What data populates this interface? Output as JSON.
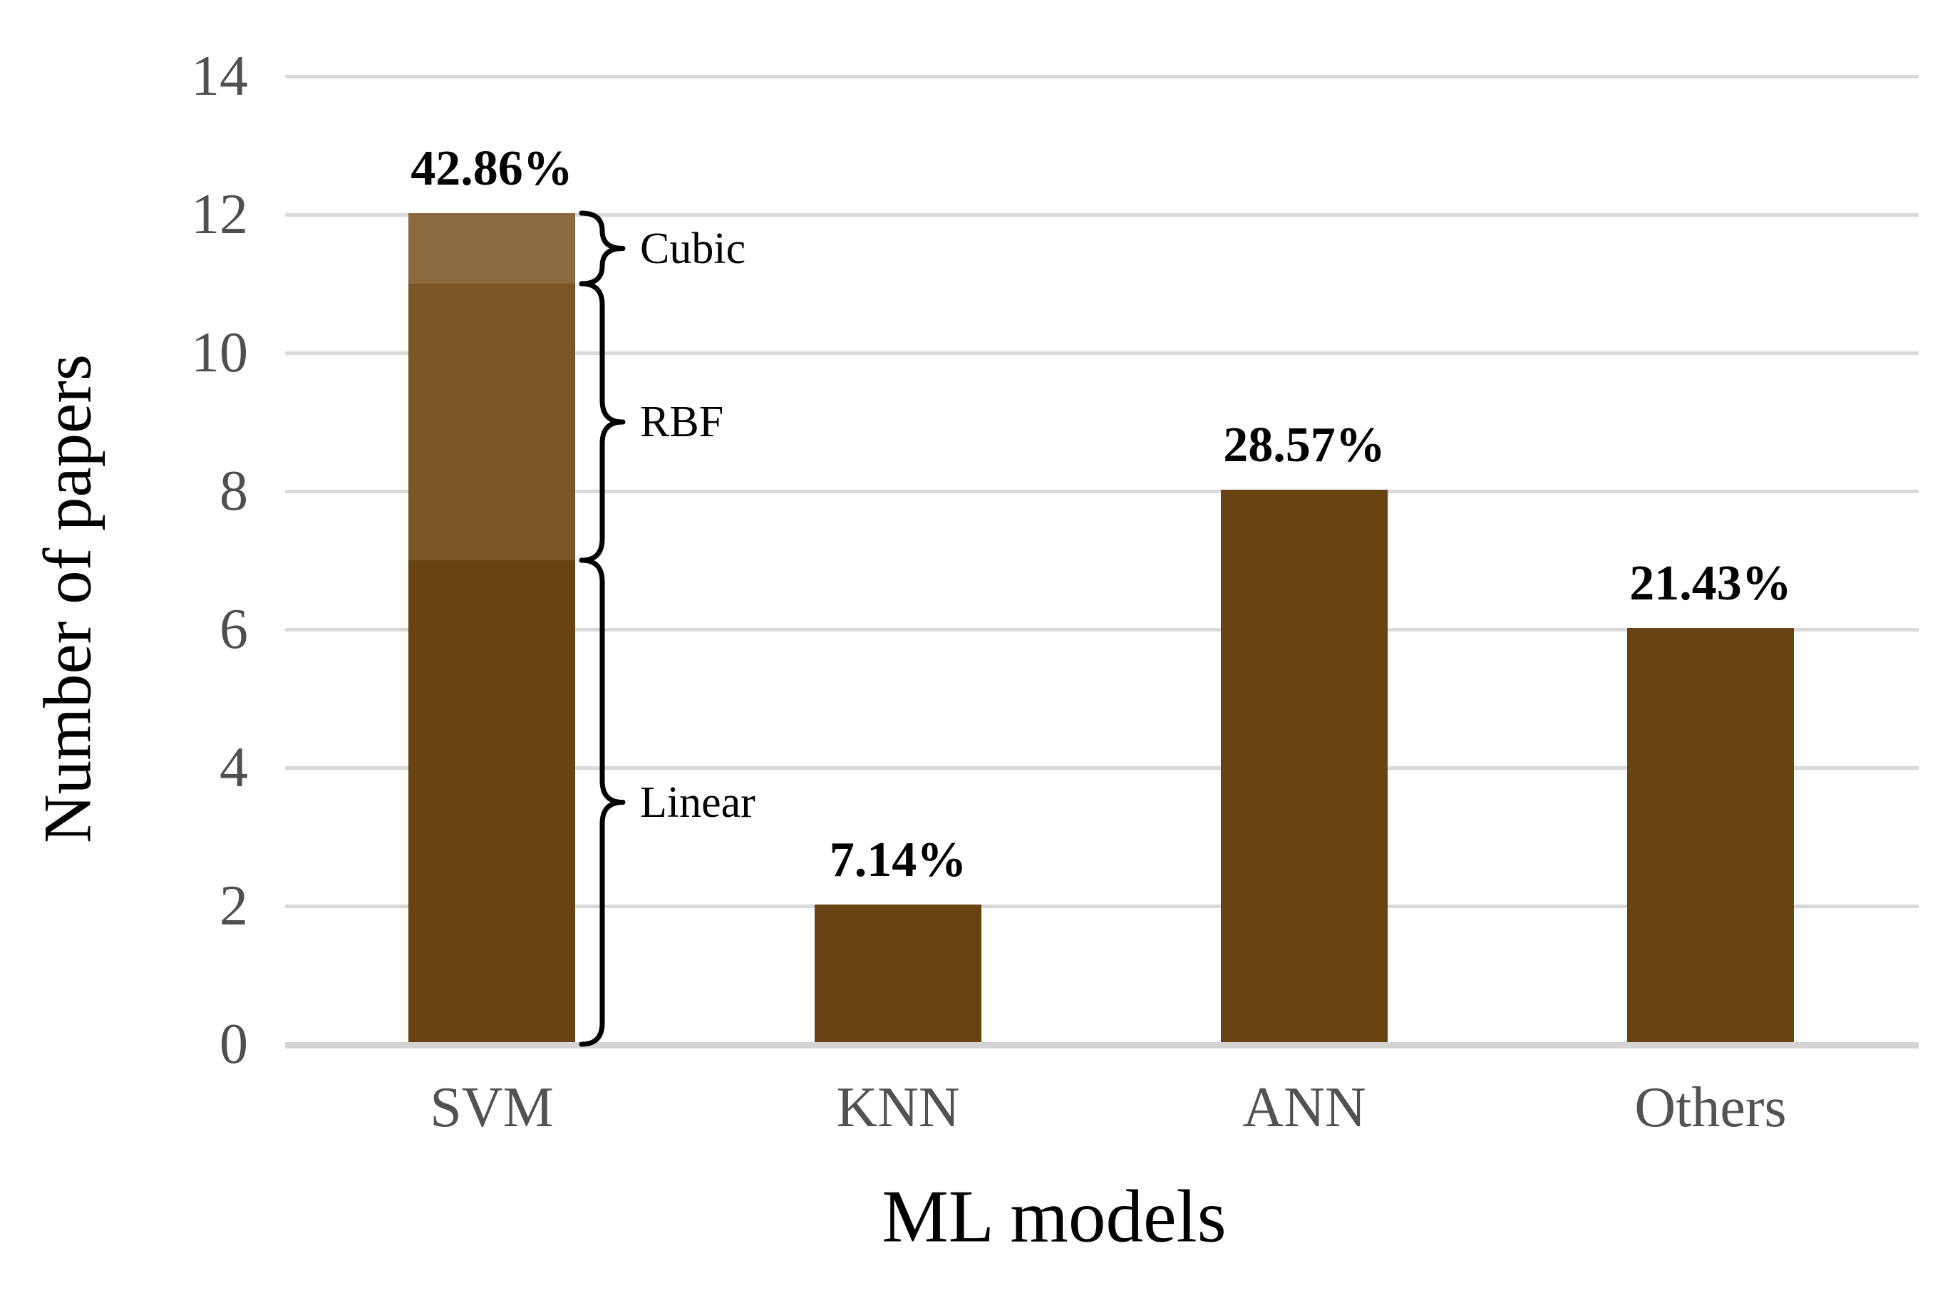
{
  "chart_data": {
    "type": "bar",
    "title": "",
    "xlabel": "ML models",
    "ylabel": "Number of papers",
    "ylim": [
      0,
      14
    ],
    "yticks": [
      0,
      2,
      4,
      6,
      8,
      10,
      12,
      14
    ],
    "grid": true,
    "legend_position": "none",
    "categories": [
      "SVM",
      "KNN",
      "ANN",
      "Others"
    ],
    "values": [
      12,
      2,
      8,
      6
    ],
    "percent_labels": [
      "42.86%",
      "7.14%",
      "28.57%",
      "21.43%"
    ],
    "stacked_bar": {
      "category": "SVM",
      "segments": [
        {
          "label": "Linear",
          "from": 0,
          "to": 7
        },
        {
          "label": "RBF",
          "from": 7,
          "to": 11
        },
        {
          "label": "Cubic",
          "from": 11,
          "to": 12
        }
      ]
    }
  },
  "colors": {
    "bar_main": "#6A4313",
    "segment_rbf": "#7A5526",
    "segment_cubic": "#8A6A3E",
    "segment_linear": "#6A4313",
    "gridline": "#D9D9D9",
    "axis_baseline": "#D4D4D4",
    "tick_text": "#4F4F4F",
    "category_text": "#525252",
    "annotation_text": "#000000",
    "brace_stroke": "#000000"
  }
}
